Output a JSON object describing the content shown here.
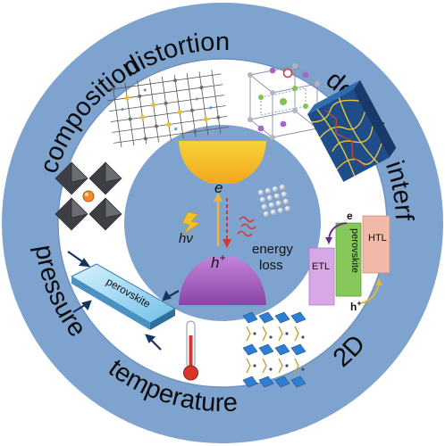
{
  "ring_labels": {
    "distortion": "distortion",
    "defect": "defect",
    "composition": "composition",
    "interface": "interface",
    "pressure": "pressure",
    "temperature": "temperature",
    "two_d": "2D"
  },
  "center": {
    "electron": "e",
    "hole": "h",
    "hole_sup": "+",
    "photon": "hν",
    "energy_loss_line1": "energy",
    "energy_loss_line2": "loss"
  },
  "pressure_panel": {
    "slab_label": "perovskite"
  },
  "interface_panel": {
    "etl": "ETL",
    "perovskite": "perovskite",
    "htl": "HTL",
    "electron": "e",
    "hole": "h",
    "hole_sup": "+"
  },
  "colors": {
    "outer_ring": "#7fa3cf",
    "inner_band": "#ffffff",
    "center_disc": "#7fa3cf",
    "conduction_band": "#f5c62c",
    "valence_band": "#a55fbe"
  }
}
